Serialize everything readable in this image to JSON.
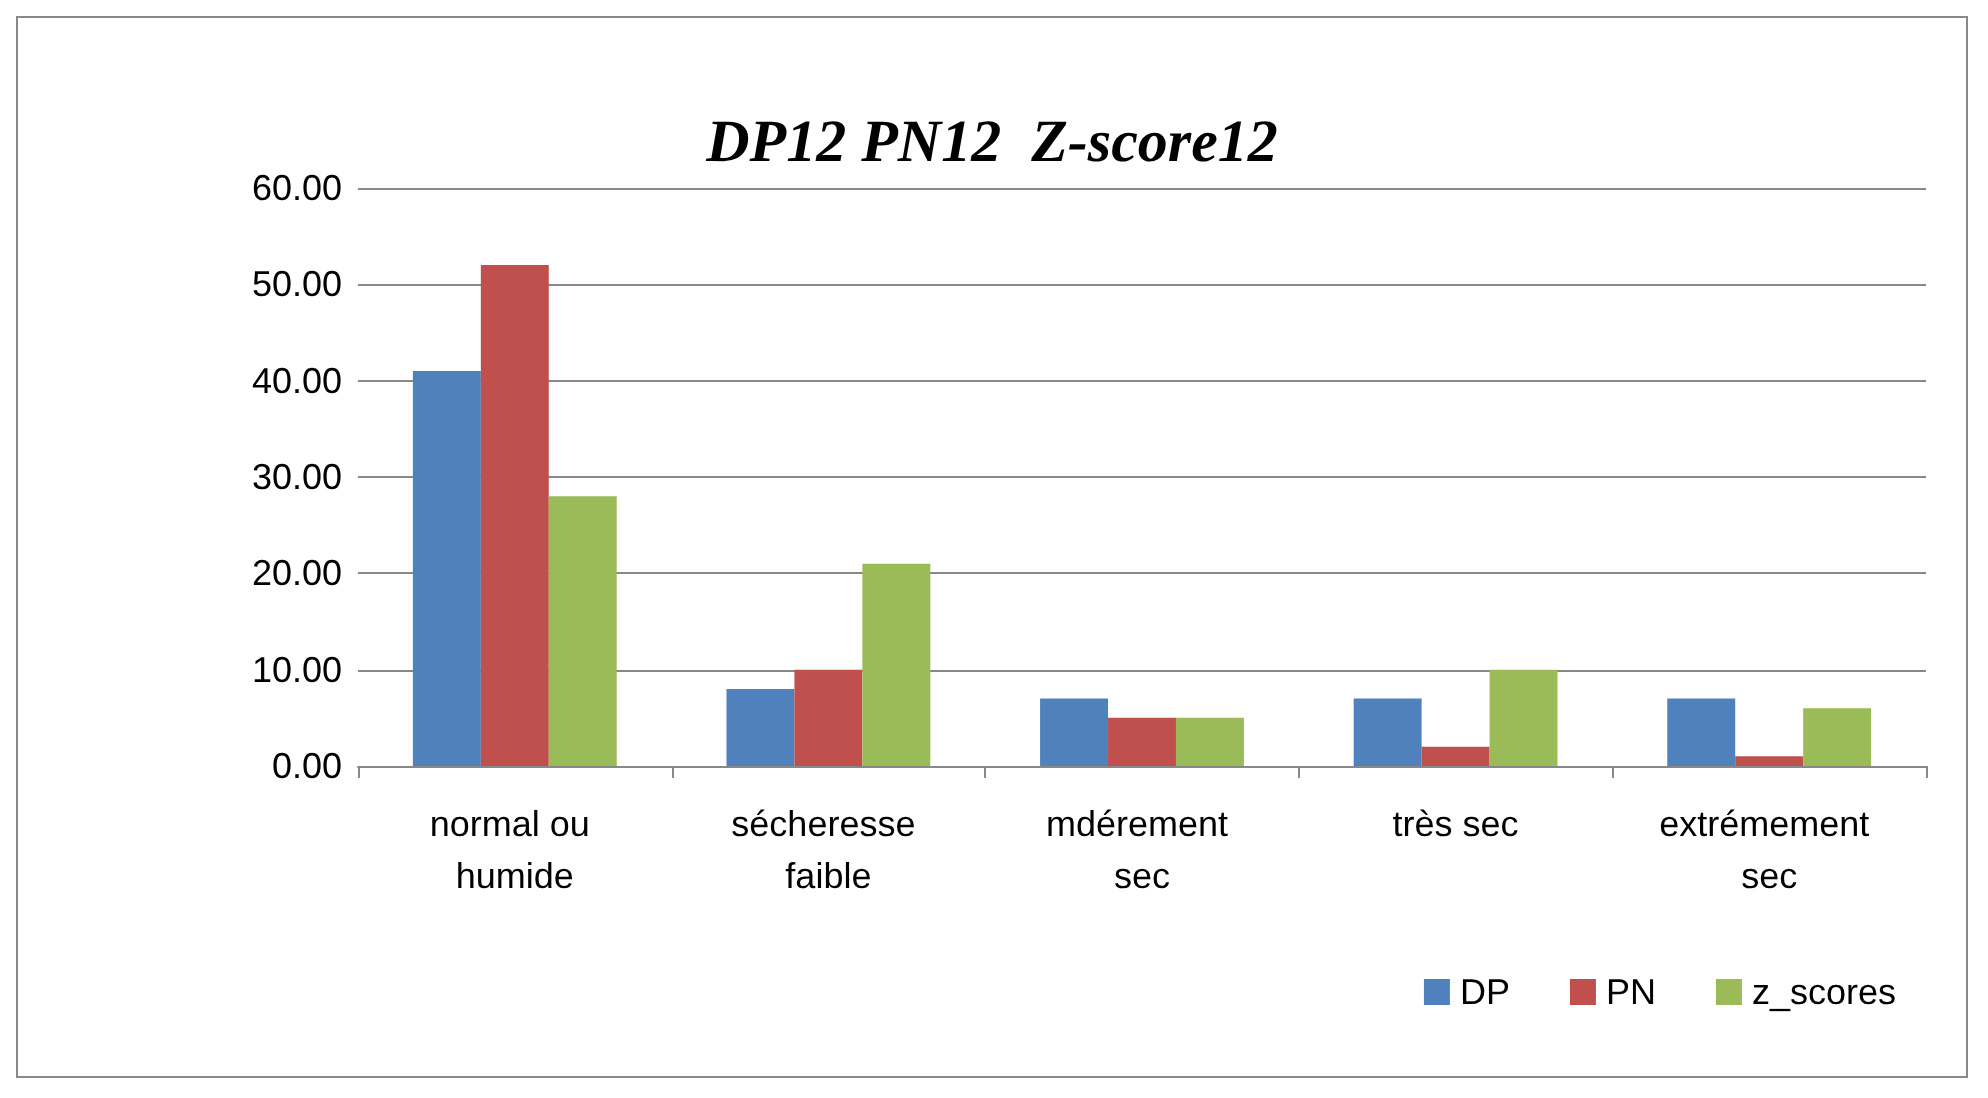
{
  "chart_data": {
    "type": "bar",
    "title": "DP12 PN12  Z-score12",
    "categories": [
      "normal ou humide",
      "sécheresse faible",
      "mdérement sec",
      "très sec",
      "extrémement sec"
    ],
    "series": [
      {
        "name": "DP",
        "color": "#4f81bd",
        "values": [
          41,
          8,
          7,
          7,
          7
        ]
      },
      {
        "name": "PN",
        "color": "#c0504d",
        "values": [
          52,
          10,
          5,
          2,
          1
        ]
      },
      {
        "name": "z_scores",
        "color": "#9bbb59",
        "values": [
          28,
          21,
          5,
          10,
          6
        ]
      }
    ],
    "ylim": [
      0,
      60
    ],
    "yticks": [
      {
        "value": 0,
        "label": "0.00"
      },
      {
        "value": 10,
        "label": "10.00"
      },
      {
        "value": 20,
        "label": "20.00"
      },
      {
        "value": 30,
        "label": "30.00"
      },
      {
        "value": 40,
        "label": "40.00"
      },
      {
        "value": 50,
        "label": "50.00"
      },
      {
        "value": 60,
        "label": "60.00"
      }
    ],
    "grid": "y",
    "legend": "bottom right"
  }
}
